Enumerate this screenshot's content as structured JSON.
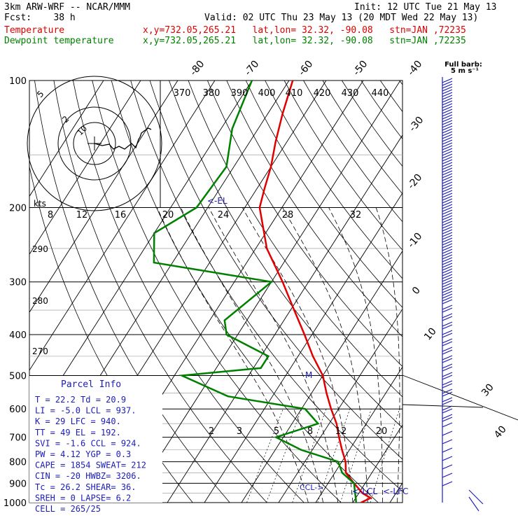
{
  "header": {
    "model": "3km ARW-WRF -- NCAR/MMM",
    "init": "Init: 12 UTC Tue 21 May 13",
    "fcst": "Fcst:    38 h",
    "valid": "Valid: 02 UTC Thu 23 May 13 (20 MDT Wed 22 May 13)",
    "temp_label": "Temperature",
    "temp_info": "x,y=732.05,265.21   lat,lon= 32.32, -90.08   stn=JAN ,72235",
    "dew_label": "Dewpoint temperature",
    "dew_info": "x,y=732.05,265.21   lat,lon= 32.32, -90.08   stn=JAN ,72235"
  },
  "colors": {
    "temperature": "#e00000",
    "dewpoint": "#008000",
    "barbs": "#1c1cb8",
    "annot": "#1c1cb8"
  },
  "barb_title": [
    "Full barb:",
    "5 m s⁻¹"
  ],
  "chart_data": {
    "type": "skew-t",
    "pressure_levels": [
      100,
      200,
      300,
      400,
      500,
      600,
      700,
      800,
      900,
      1000
    ],
    "isotherm_labels": [
      "-80",
      "-70",
      "-60",
      "-50",
      "-40",
      "-30",
      "-20",
      "-10",
      "0",
      "10",
      "30",
      "40"
    ],
    "theta_labels": [
      "370",
      "380",
      "390",
      "400",
      "410",
      "420",
      "430",
      "440"
    ],
    "mixing_ratio_labels": [
      "2",
      "3",
      "5",
      "8",
      "12",
      "20"
    ],
    "hodograph": {
      "ring_labels": [
        "5",
        "2",
        "10"
      ],
      "speed_unit": "kts",
      "speed_labels": [
        "8",
        "12",
        "16",
        "20",
        "24",
        "28",
        "32"
      ]
    },
    "left_axis_labels": [
      "290",
      "280",
      "270"
    ],
    "temperature": [
      {
        "p": 1000,
        "t": 22.2
      },
      {
        "p": 975,
        "t": 24
      },
      {
        "p": 950,
        "t": 21
      },
      {
        "p": 900,
        "t": 17
      },
      {
        "p": 850,
        "t": 13
      },
      {
        "p": 800,
        "t": 11
      },
      {
        "p": 750,
        "t": 8
      },
      {
        "p": 700,
        "t": 5
      },
      {
        "p": 650,
        "t": 2
      },
      {
        "p": 600,
        "t": -2
      },
      {
        "p": 550,
        "t": -6
      },
      {
        "p": 500,
        "t": -10
      },
      {
        "p": 450,
        "t": -16
      },
      {
        "p": 400,
        "t": -22
      },
      {
        "p": 350,
        "t": -29
      },
      {
        "p": 300,
        "t": -37
      },
      {
        "p": 250,
        "t": -47
      },
      {
        "p": 200,
        "t": -56
      },
      {
        "p": 180,
        "t": -58
      },
      {
        "p": 160,
        "t": -60
      },
      {
        "p": 140,
        "t": -63
      },
      {
        "p": 120,
        "t": -66
      },
      {
        "p": 100,
        "t": -69
      }
    ],
    "dewpoint": [
      {
        "p": 1000,
        "t": 20.9
      },
      {
        "p": 975,
        "t": 20
      },
      {
        "p": 950,
        "t": 19
      },
      {
        "p": 900,
        "t": 17
      },
      {
        "p": 850,
        "t": 12
      },
      {
        "p": 800,
        "t": 9
      },
      {
        "p": 750,
        "t": -3
      },
      {
        "p": 700,
        "t": -12
      },
      {
        "p": 650,
        "t": -3
      },
      {
        "p": 600,
        "t": -9
      },
      {
        "p": 560,
        "t": -32
      },
      {
        "p": 500,
        "t": -48
      },
      {
        "p": 480,
        "t": -28
      },
      {
        "p": 450,
        "t": -28
      },
      {
        "p": 400,
        "t": -43
      },
      {
        "p": 370,
        "t": -46
      },
      {
        "p": 300,
        "t": -40
      },
      {
        "p": 270,
        "t": -75
      },
      {
        "p": 230,
        "t": -80
      },
      {
        "p": 200,
        "t": -73
      },
      {
        "p": 160,
        "t": -72
      },
      {
        "p": 130,
        "t": -77
      },
      {
        "p": 100,
        "t": -80
      }
    ],
    "markers": [
      "<-EL",
      "M",
      "CCL->",
      "<-LCL",
      "<-LFC"
    ]
  },
  "parcel": {
    "title": "Parcel Info",
    "rows": [
      "T   =   22.2  Td =  20.9",
      "LI  =   -5.0  LCL =  937.",
      "K   =     29  LFC =  940.",
      "TT  =     49  EL  =  192.",
      "SVI =   -1.6  CCL =  924.",
      "PW  =   4.12  YGP =   0.3",
      "CAPE =  1854  SWEAT=  212",
      "CIN  =   -20  HWBZ= 3206.",
      "Tc  =   26.2  SHEAR=   36.",
      "SREH =     0  LAPSE=   6.2",
      "CELL = 265/25"
    ]
  }
}
